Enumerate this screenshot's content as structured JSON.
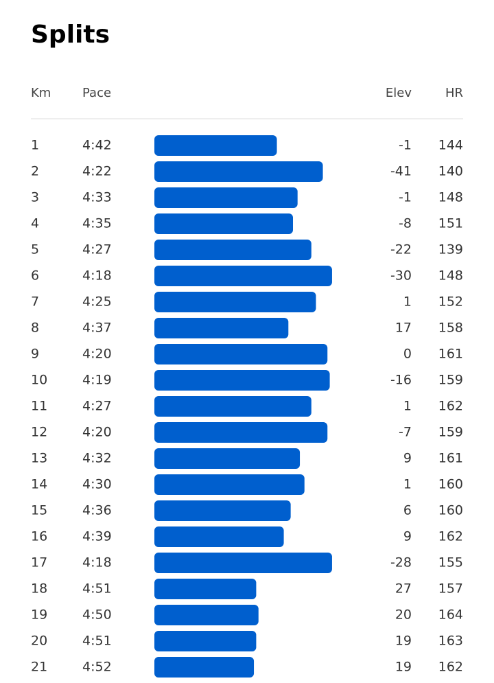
{
  "title": "Splits",
  "columns": [
    "Km",
    "Pace",
    "Elev",
    "HR"
  ],
  "rows": [
    {
      "km": 1,
      "pace": "4:42",
      "elev": -1,
      "hr": 144
    },
    {
      "km": 2,
      "pace": "4:22",
      "elev": -41,
      "hr": 140
    },
    {
      "km": 3,
      "pace": "4:33",
      "elev": -1,
      "hr": 148
    },
    {
      "km": 4,
      "pace": "4:35",
      "elev": -8,
      "hr": 151
    },
    {
      "km": 5,
      "pace": "4:27",
      "elev": -22,
      "hr": 139
    },
    {
      "km": 6,
      "pace": "4:18",
      "elev": -30,
      "hr": 148
    },
    {
      "km": 7,
      "pace": "4:25",
      "elev": 1,
      "hr": 152
    },
    {
      "km": 8,
      "pace": "4:37",
      "elev": 17,
      "hr": 158
    },
    {
      "km": 9,
      "pace": "4:20",
      "elev": 0,
      "hr": 161
    },
    {
      "km": 10,
      "pace": "4:19",
      "elev": -16,
      "hr": 159
    },
    {
      "km": 11,
      "pace": "4:27",
      "elev": 1,
      "hr": 162
    },
    {
      "km": 12,
      "pace": "4:20",
      "elev": -7,
      "hr": 159
    },
    {
      "km": 13,
      "pace": "4:32",
      "elev": 9,
      "hr": 161
    },
    {
      "km": 14,
      "pace": "4:30",
      "elev": 1,
      "hr": 160
    },
    {
      "km": 15,
      "pace": "4:36",
      "elev": 6,
      "hr": 160
    },
    {
      "km": 16,
      "pace": "4:39",
      "elev": 9,
      "hr": 162
    },
    {
      "km": 17,
      "pace": "4:18",
      "elev": -28,
      "hr": 155
    },
    {
      "km": 18,
      "pace": "4:51",
      "elev": 27,
      "hr": 157
    },
    {
      "km": 19,
      "pace": "4:50",
      "elev": 20,
      "hr": 164
    },
    {
      "km": 20,
      "pace": "4:51",
      "elev": 19,
      "hr": 163
    },
    {
      "km": 21,
      "pace": "4:52",
      "elev": 19,
      "hr": 162
    }
  ]
}
